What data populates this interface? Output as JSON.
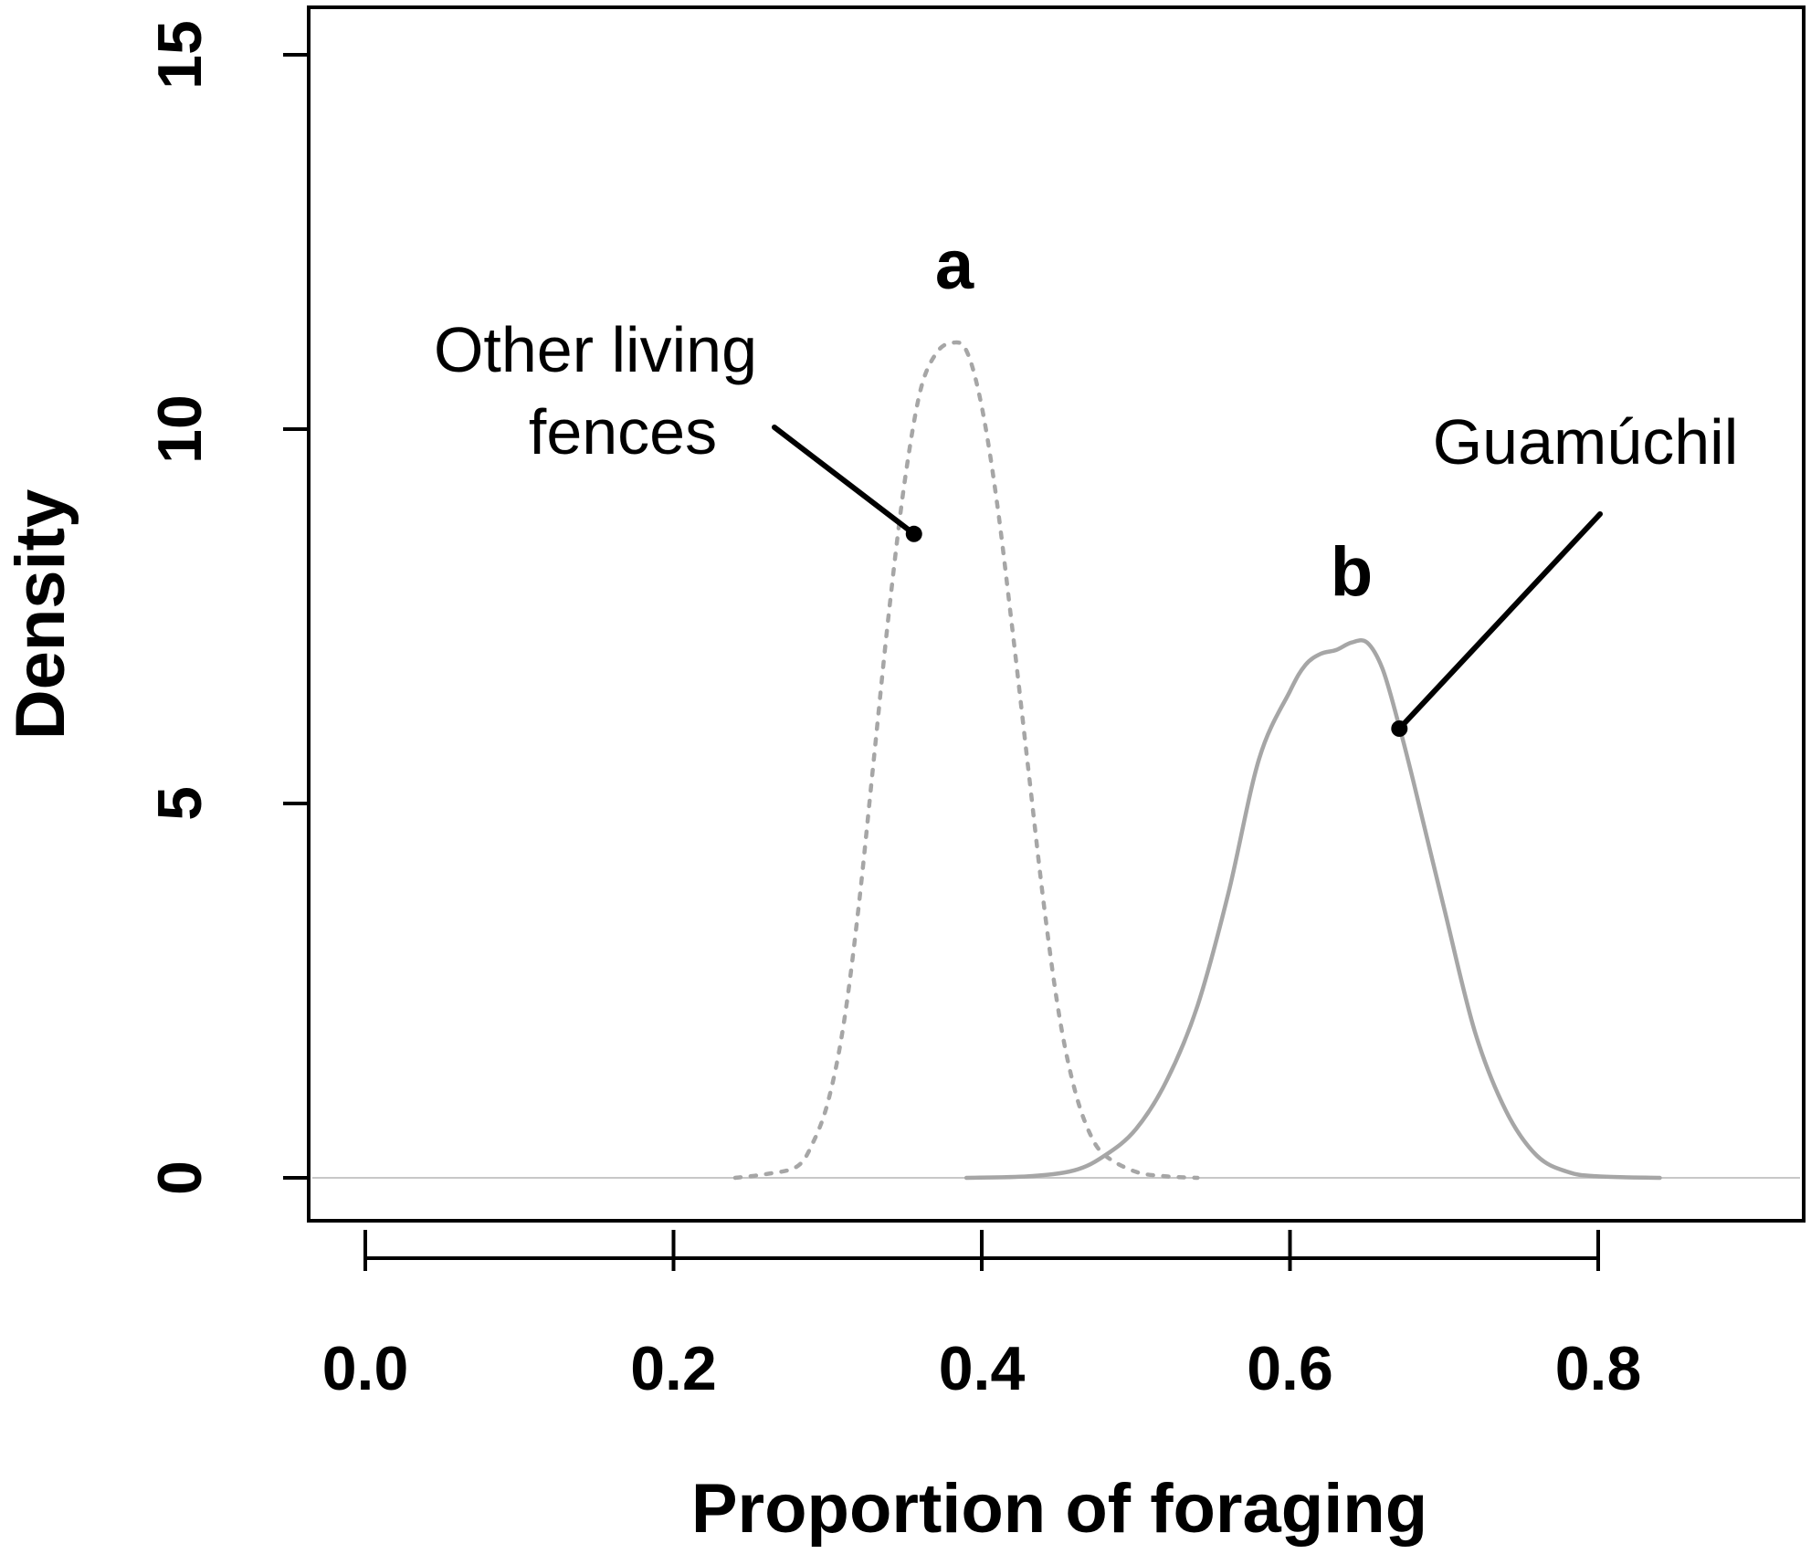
{
  "chart_data": {
    "type": "line",
    "title": "",
    "xlabel": "Proportion of foraging",
    "ylabel": "Density",
    "xlim": [
      -0.02,
      0.93
    ],
    "ylim": [
      0,
      15
    ],
    "x_ticks": [
      0.0,
      0.2,
      0.4,
      0.6,
      0.8
    ],
    "x_tick_labels": [
      "0.0",
      "0.2",
      "0.4",
      "0.6",
      "0.8"
    ],
    "y_ticks": [
      0,
      5,
      10,
      15
    ],
    "y_tick_labels": [
      "0",
      "5",
      "10",
      "15"
    ],
    "grid": false,
    "baseline_y": 0,
    "series": [
      {
        "name": "Other living fences",
        "style": "dotted",
        "color": "#a6a6a6",
        "peak_label": "a",
        "x": [
          0.24,
          0.26,
          0.28,
          0.29,
          0.3,
          0.31,
          0.32,
          0.33,
          0.34,
          0.35,
          0.36,
          0.37,
          0.38,
          0.39,
          0.4,
          0.41,
          0.42,
          0.43,
          0.44,
          0.45,
          0.46,
          0.47,
          0.48,
          0.5,
          0.52,
          0.54
        ],
        "y": [
          0.0,
          0.05,
          0.15,
          0.45,
          1.0,
          2.0,
          3.6,
          5.6,
          7.6,
          9.3,
          10.5,
          11.0,
          11.15,
          11.05,
          10.3,
          9.0,
          7.3,
          5.5,
          3.7,
          2.2,
          1.2,
          0.6,
          0.3,
          0.08,
          0.02,
          0.0
        ]
      },
      {
        "name": "Guamúchil",
        "style": "solid",
        "color": "#a6a6a6",
        "peak_label": "b",
        "x": [
          0.39,
          0.43,
          0.46,
          0.48,
          0.5,
          0.52,
          0.54,
          0.56,
          0.58,
          0.6,
          0.61,
          0.62,
          0.63,
          0.64,
          0.65,
          0.66,
          0.67,
          0.68,
          0.7,
          0.72,
          0.74,
          0.76,
          0.78,
          0.8,
          0.84
        ],
        "y": [
          0.0,
          0.02,
          0.1,
          0.3,
          0.65,
          1.3,
          2.3,
          3.8,
          5.6,
          6.5,
          6.85,
          7.0,
          7.05,
          7.15,
          7.15,
          6.8,
          6.1,
          5.3,
          3.6,
          1.95,
          0.9,
          0.3,
          0.08,
          0.02,
          0.0
        ]
      }
    ],
    "annotations": {
      "other_label_lines": [
        "Other living",
        "fences"
      ],
      "other_letter": "a",
      "guam_label": "Guamúchil",
      "guam_letter": "b",
      "other_pointer_target": [
        0.356,
        8.6
      ],
      "guam_pointer_target": [
        0.671,
        6.0
      ]
    }
  }
}
